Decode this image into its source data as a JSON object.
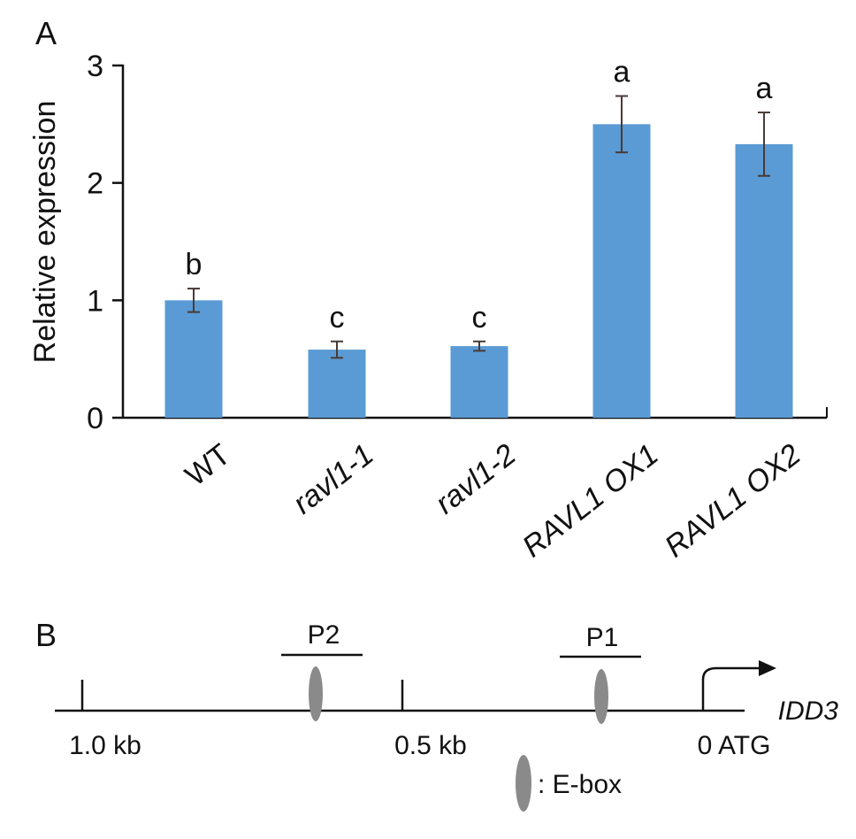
{
  "chart_data": {
    "type": "bar",
    "panel_label": "A",
    "ylabel": "Relative expression",
    "ylim": [
      0,
      3
    ],
    "yticks": [
      0,
      1,
      2,
      3
    ],
    "categories": [
      "WT",
      "ravl1-1",
      "ravl1-2",
      "RAVL1 OX1",
      "RAVL1 OX2"
    ],
    "italic_categories": [
      false,
      true,
      true,
      true,
      true
    ],
    "values": [
      1.0,
      0.58,
      0.61,
      2.5,
      2.33
    ],
    "errors": [
      0.1,
      0.07,
      0.04,
      0.24,
      0.27
    ],
    "significance_letters": [
      "b",
      "c",
      "c",
      "a",
      "a"
    ],
    "bar_color": "#5b9bd5"
  },
  "diagram": {
    "panel_label": "B",
    "gene_label": "IDD3",
    "scale_labels": [
      "1.0 kb",
      "0.5 kb",
      "0 ATG"
    ],
    "probes": [
      "P2",
      "P1"
    ],
    "legend_label": ": E-box",
    "ebox_color": "#8a8a8a"
  }
}
